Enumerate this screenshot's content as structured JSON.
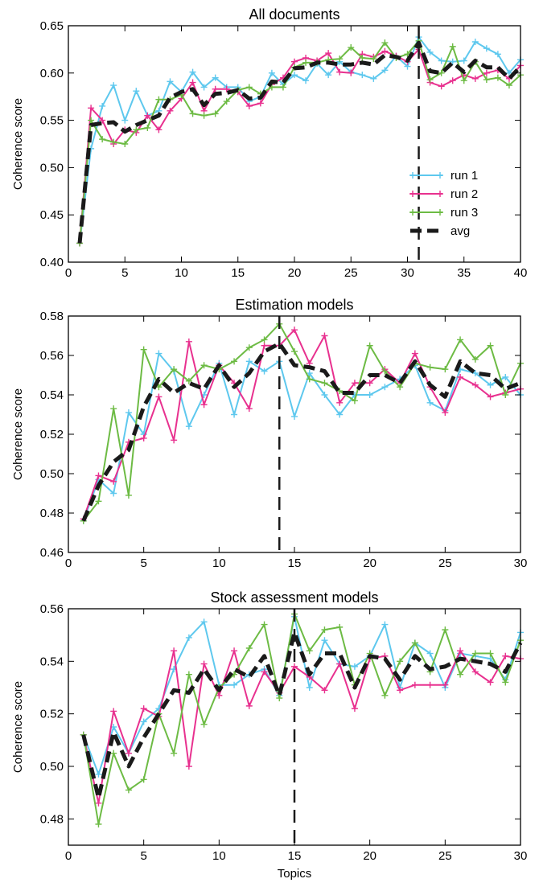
{
  "colors": {
    "run1": "#5ec8ee",
    "run2": "#e8318f",
    "run3": "#6dbb44",
    "avg": "#1a1a1a",
    "vline": "#1a1a1a"
  },
  "chart_data": [
    {
      "type": "line",
      "title": "All documents",
      "xlabel": "",
      "ylabel": "Coherence score",
      "xlim": [
        0,
        40
      ],
      "ylim": [
        0.4,
        0.65
      ],
      "xticks": [
        0,
        5,
        10,
        15,
        20,
        25,
        30,
        35,
        40
      ],
      "yticks": [
        0.4,
        0.45,
        0.5,
        0.55,
        0.6,
        0.65
      ],
      "ydecimals": 2,
      "vline": 31,
      "legend": "bottom-right",
      "x": [
        1,
        2,
        3,
        4,
        5,
        6,
        7,
        8,
        9,
        10,
        11,
        12,
        13,
        14,
        15,
        16,
        17,
        18,
        19,
        20,
        21,
        22,
        23,
        24,
        25,
        26,
        27,
        28,
        29,
        30,
        31,
        32,
        33,
        34,
        35,
        36,
        37,
        38,
        39,
        40
      ],
      "series": [
        {
          "name": "run 1",
          "color_key": "run1",
          "marker": true,
          "values": [
            0.42,
            0.52,
            0.565,
            0.587,
            0.55,
            0.581,
            0.555,
            0.56,
            0.591,
            0.58,
            0.601,
            0.585,
            0.595,
            0.585,
            0.585,
            0.57,
            0.575,
            0.6,
            0.588,
            0.598,
            0.592,
            0.61,
            0.598,
            0.612,
            0.601,
            0.598,
            0.594,
            0.603,
            0.618,
            0.607,
            0.638,
            0.622,
            0.613,
            0.612,
            0.613,
            0.633,
            0.626,
            0.62,
            0.6,
            0.614
          ]
        },
        {
          "name": "run 2",
          "color_key": "run2",
          "marker": true,
          "values": [
            0.42,
            0.563,
            0.55,
            0.525,
            0.54,
            0.537,
            0.555,
            0.54,
            0.56,
            0.573,
            0.59,
            0.56,
            0.583,
            0.583,
            0.58,
            0.565,
            0.568,
            0.588,
            0.595,
            0.612,
            0.616,
            0.613,
            0.621,
            0.601,
            0.6,
            0.62,
            0.617,
            0.623,
            0.618,
            0.612,
            0.625,
            0.59,
            0.586,
            0.592,
            0.598,
            0.594,
            0.6,
            0.603,
            0.594,
            0.608
          ]
        },
        {
          "name": "run 3",
          "color_key": "run3",
          "marker": true,
          "values": [
            0.42,
            0.55,
            0.53,
            0.527,
            0.525,
            0.54,
            0.542,
            0.572,
            0.572,
            0.577,
            0.557,
            0.555,
            0.557,
            0.57,
            0.582,
            0.585,
            0.578,
            0.585,
            0.585,
            0.606,
            0.611,
            0.611,
            0.614,
            0.615,
            0.627,
            0.616,
            0.615,
            0.632,
            0.616,
            0.62,
            0.634,
            0.593,
            0.6,
            0.628,
            0.592,
            0.612,
            0.593,
            0.595,
            0.587,
            0.598
          ]
        },
        {
          "name": "avg",
          "color_key": "avg",
          "marker": false,
          "dashed": true,
          "values": [
            0.42,
            0.545,
            0.547,
            0.548,
            0.538,
            0.545,
            0.55,
            0.555,
            0.574,
            0.58,
            0.583,
            0.566,
            0.578,
            0.579,
            0.582,
            0.573,
            0.574,
            0.591,
            0.59,
            0.605,
            0.606,
            0.611,
            0.611,
            0.609,
            0.609,
            0.611,
            0.609,
            0.619,
            0.617,
            0.613,
            0.632,
            0.602,
            0.6,
            0.611,
            0.601,
            0.613,
            0.606,
            0.606,
            0.594,
            0.607
          ]
        }
      ]
    },
    {
      "type": "line",
      "title": "Estimation models",
      "xlabel": "",
      "ylabel": "Coherence score",
      "xlim": [
        0,
        30
      ],
      "ylim": [
        0.46,
        0.58
      ],
      "xticks": [
        0,
        5,
        10,
        15,
        20,
        25,
        30
      ],
      "yticks": [
        0.46,
        0.48,
        0.5,
        0.52,
        0.54,
        0.56,
        0.58
      ],
      "ydecimals": 2,
      "vline": 14,
      "x": [
        1,
        2,
        3,
        4,
        5,
        6,
        7,
        8,
        9,
        10,
        11,
        12,
        13,
        14,
        15,
        16,
        17,
        18,
        19,
        20,
        21,
        22,
        23,
        24,
        25,
        26,
        27,
        28,
        29,
        30
      ],
      "series": [
        {
          "name": "run 1",
          "color_key": "run1",
          "marker": true,
          "values": [
            0.476,
            0.497,
            0.49,
            0.531,
            0.52,
            0.561,
            0.552,
            0.524,
            0.54,
            0.556,
            0.53,
            0.557,
            0.552,
            0.557,
            0.529,
            0.551,
            0.54,
            0.53,
            0.54,
            0.54,
            0.544,
            0.548,
            0.555,
            0.536,
            0.532,
            0.553,
            0.551,
            0.545,
            0.549,
            0.54
          ]
        },
        {
          "name": "run 2",
          "color_key": "run2",
          "marker": true,
          "values": [
            0.477,
            0.499,
            0.496,
            0.516,
            0.518,
            0.539,
            0.517,
            0.567,
            0.535,
            0.555,
            0.546,
            0.533,
            0.565,
            0.565,
            0.573,
            0.556,
            0.57,
            0.536,
            0.546,
            0.546,
            0.553,
            0.546,
            0.561,
            0.544,
            0.531,
            0.549,
            0.545,
            0.539,
            0.541,
            0.543
          ]
        },
        {
          "name": "run 3",
          "color_key": "run3",
          "marker": true,
          "values": [
            0.476,
            0.486,
            0.533,
            0.489,
            0.563,
            0.544,
            0.553,
            0.547,
            0.555,
            0.553,
            0.557,
            0.564,
            0.568,
            0.576,
            0.562,
            0.548,
            0.546,
            0.542,
            0.537,
            0.565,
            0.552,
            0.544,
            0.556,
            0.554,
            0.553,
            0.568,
            0.558,
            0.565,
            0.54,
            0.556
          ]
        },
        {
          "name": "avg",
          "color_key": "avg",
          "marker": false,
          "dashed": true,
          "values": [
            0.476,
            0.494,
            0.506,
            0.512,
            0.534,
            0.548,
            0.541,
            0.546,
            0.543,
            0.555,
            0.544,
            0.551,
            0.562,
            0.566,
            0.555,
            0.554,
            0.552,
            0.541,
            0.541,
            0.55,
            0.55,
            0.546,
            0.557,
            0.545,
            0.539,
            0.557,
            0.551,
            0.55,
            0.543,
            0.546
          ]
        }
      ]
    },
    {
      "type": "line",
      "title": "Stock assessment models",
      "xlabel": "Topics",
      "ylabel": "Coherence score",
      "xlim": [
        0,
        30
      ],
      "ylim": [
        0.47,
        0.56
      ],
      "xticks": [
        0,
        5,
        10,
        15,
        20,
        25,
        30
      ],
      "yticks": [
        0.48,
        0.5,
        0.52,
        0.54,
        0.56
      ],
      "ydecimals": 2,
      "vline": 15,
      "x": [
        1,
        2,
        3,
        4,
        5,
        6,
        7,
        8,
        9,
        10,
        11,
        12,
        13,
        14,
        15,
        16,
        17,
        18,
        19,
        20,
        21,
        22,
        23,
        24,
        25,
        26,
        27,
        28,
        29,
        30
      ],
      "series": [
        {
          "name": "run 1",
          "color_key": "run1",
          "marker": true,
          "values": [
            0.512,
            0.497,
            0.515,
            0.505,
            0.517,
            0.522,
            0.537,
            0.549,
            0.555,
            0.531,
            0.531,
            0.535,
            0.537,
            0.527,
            0.557,
            0.53,
            0.548,
            0.539,
            0.538,
            0.542,
            0.554,
            0.53,
            0.547,
            0.543,
            0.53,
            0.543,
            0.542,
            0.541,
            0.533,
            0.551
          ]
        },
        {
          "name": "run 2",
          "color_key": "run2",
          "marker": true,
          "values": [
            0.512,
            0.486,
            0.521,
            0.505,
            0.522,
            0.519,
            0.544,
            0.5,
            0.539,
            0.527,
            0.544,
            0.523,
            0.536,
            0.528,
            0.538,
            0.534,
            0.529,
            0.539,
            0.522,
            0.541,
            0.542,
            0.529,
            0.531,
            0.531,
            0.531,
            0.544,
            0.536,
            0.532,
            0.542,
            0.541
          ]
        },
        {
          "name": "run 3",
          "color_key": "run3",
          "marker": true,
          "values": [
            0.512,
            0.478,
            0.505,
            0.491,
            0.495,
            0.52,
            0.505,
            0.535,
            0.516,
            0.53,
            0.535,
            0.545,
            0.554,
            0.526,
            0.558,
            0.544,
            0.552,
            0.553,
            0.531,
            0.543,
            0.527,
            0.54,
            0.547,
            0.536,
            0.552,
            0.535,
            0.543,
            0.543,
            0.532,
            0.548
          ]
        },
        {
          "name": "avg",
          "color_key": "avg",
          "marker": false,
          "dashed": true,
          "values": [
            0.512,
            0.488,
            0.513,
            0.5,
            0.511,
            0.52,
            0.529,
            0.528,
            0.537,
            0.529,
            0.537,
            0.534,
            0.542,
            0.527,
            0.551,
            0.535,
            0.543,
            0.543,
            0.53,
            0.542,
            0.541,
            0.533,
            0.542,
            0.537,
            0.538,
            0.541,
            0.54,
            0.539,
            0.536,
            0.547
          ]
        }
      ]
    }
  ]
}
